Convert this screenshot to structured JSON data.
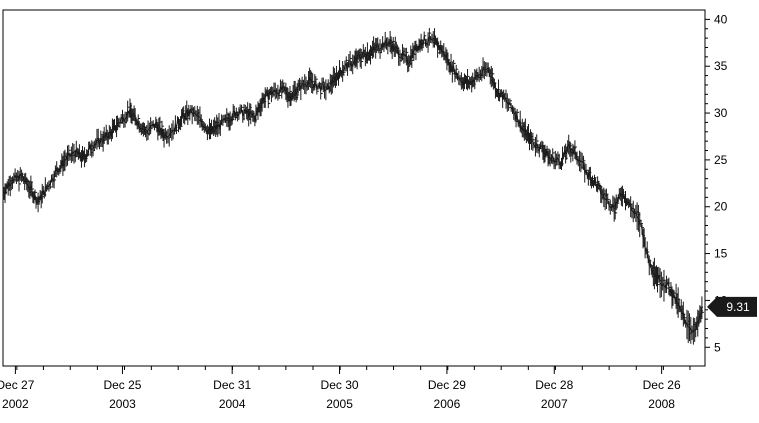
{
  "chart_data": {
    "type": "line",
    "style": "ohlc-bars",
    "title": "",
    "xlabel": "",
    "ylabel": "",
    "y_axis_side": "right",
    "grid": false,
    "ylim": [
      3,
      41
    ],
    "y_ticks": [
      5,
      10,
      15,
      20,
      25,
      30,
      35,
      40
    ],
    "x_ticks": [
      {
        "date": "2002-12-27",
        "label": "Dec 27",
        "year": "2002"
      },
      {
        "date": "2003-12-25",
        "label": "Dec 25",
        "year": "2003"
      },
      {
        "date": "2004-12-31",
        "label": "Dec 31",
        "year": "2004"
      },
      {
        "date": "2005-12-30",
        "label": "Dec 30",
        "year": "2005"
      },
      {
        "date": "2006-12-29",
        "label": "Dec 29",
        "year": "2006"
      },
      {
        "date": "2007-12-28",
        "label": "Dec 28",
        "year": "2007"
      },
      {
        "date": "2008-12-26",
        "label": "Dec 26",
        "year": "2008"
      }
    ],
    "x_range": [
      "2002-11-15",
      "2009-05-22"
    ],
    "last_value_label": "9.31",
    "colors": {
      "line": "#1a1a1a",
      "badge": "#1a1a1a",
      "badge_text": "#ffffff",
      "axis": "#000000"
    },
    "series": [
      {
        "x": [
          "2002-11-15",
          "2002-12-13",
          "2003-01-17",
          "2003-02-14",
          "2003-03-14",
          "2003-04-11",
          "2003-05-16",
          "2003-06-13",
          "2003-07-18",
          "2003-08-15",
          "2003-09-12",
          "2003-10-17",
          "2003-11-14",
          "2003-12-12",
          "2004-01-16",
          "2004-02-13",
          "2004-03-12",
          "2004-04-16",
          "2004-05-14",
          "2004-06-18",
          "2004-07-16",
          "2004-08-13",
          "2004-09-17",
          "2004-10-15",
          "2004-11-12",
          "2004-12-17",
          "2005-01-14",
          "2005-02-18",
          "2005-03-18",
          "2005-04-15",
          "2005-05-13",
          "2005-06-17",
          "2005-07-15",
          "2005-08-12",
          "2005-09-16",
          "2005-10-14",
          "2005-11-18",
          "2005-12-16",
          "2006-01-13",
          "2006-02-17",
          "2006-03-17",
          "2006-04-14",
          "2006-05-12",
          "2006-06-16",
          "2006-07-14",
          "2006-08-18",
          "2006-09-15",
          "2006-10-13",
          "2006-11-17",
          "2006-12-15",
          "2007-01-12",
          "2007-02-16",
          "2007-03-16",
          "2007-04-13",
          "2007-05-18",
          "2007-06-15",
          "2007-07-13",
          "2007-08-17",
          "2007-09-14",
          "2007-10-12",
          "2007-11-16",
          "2007-12-14",
          "2008-01-18",
          "2008-02-15",
          "2008-03-14",
          "2008-04-18",
          "2008-05-16",
          "2008-06-13",
          "2008-07-18",
          "2008-08-15",
          "2008-09-12",
          "2008-10-17",
          "2008-11-14",
          "2008-12-12",
          "2009-01-16",
          "2009-02-13",
          "2009-03-13",
          "2009-04-17",
          "2009-05-15"
        ],
        "y": [
          21.5,
          22.8,
          23.2,
          22.0,
          20.5,
          22.0,
          23.8,
          25.0,
          25.8,
          25.2,
          26.5,
          27.2,
          27.8,
          29.0,
          30.2,
          29.2,
          28.0,
          28.8,
          27.6,
          28.4,
          29.6,
          30.1,
          29.2,
          28.0,
          28.6,
          29.3,
          30.1,
          30.0,
          29.5,
          31.5,
          32.2,
          32.5,
          31.8,
          32.6,
          33.5,
          32.9,
          32.5,
          33.8,
          34.8,
          35.5,
          36.2,
          36.5,
          37.2,
          37.5,
          36.6,
          35.5,
          37.0,
          37.8,
          37.6,
          36.6,
          35.0,
          33.5,
          33.2,
          34.0,
          34.8,
          32.5,
          31.5,
          30.0,
          28.2,
          27.0,
          26.2,
          25.2,
          24.8,
          26.3,
          25.5,
          23.5,
          22.5,
          21.0,
          20.0,
          21.5,
          20.0,
          18.0,
          14.0,
          12.5,
          11.5,
          10.0,
          8.0,
          6.5,
          9.31
        ]
      }
    ]
  }
}
